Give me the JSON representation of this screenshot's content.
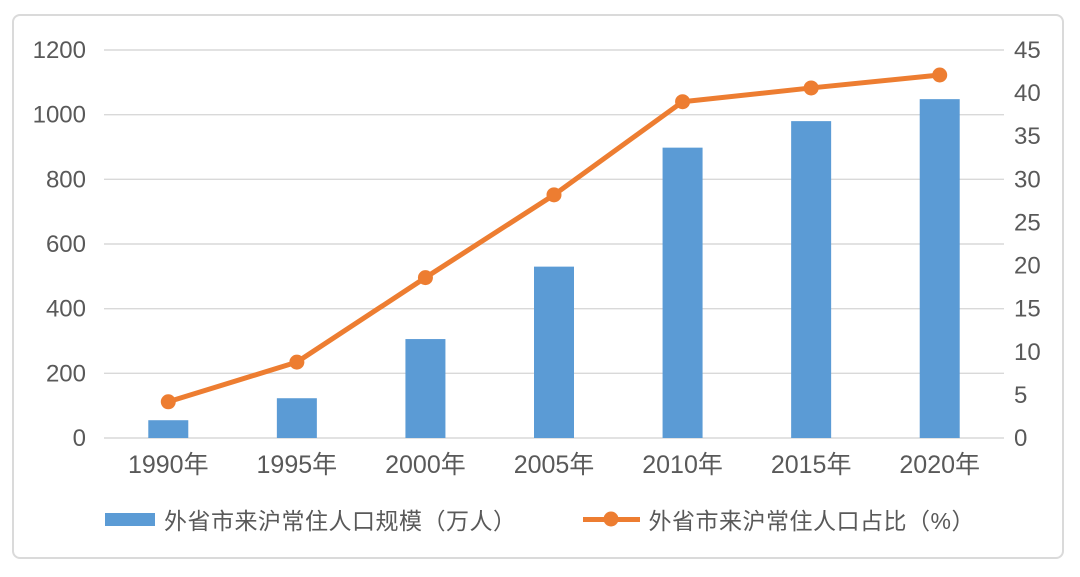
{
  "chart_data": {
    "type": "combo-bar-line",
    "title": "",
    "categories": [
      "1990年",
      "1995年",
      "2000年",
      "2005年",
      "2010年",
      "2015年",
      "2020年"
    ],
    "series": [
      {
        "name": "外省市来沪常住人口规模（万人）",
        "type": "bar",
        "axis": "left",
        "values": [
          55,
          123,
          306,
          530,
          898,
          980,
          1048
        ]
      },
      {
        "name": "外省市来沪常住人口占比（%）",
        "type": "line",
        "axis": "right",
        "values": [
          4.2,
          8.8,
          18.6,
          28.2,
          39.0,
          40.6,
          42.1
        ]
      }
    ],
    "left_axis": {
      "min": 0,
      "max": 1200,
      "step": 200,
      "ticks": [
        "0",
        "200",
        "400",
        "600",
        "800",
        "1000",
        "1200"
      ]
    },
    "right_axis": {
      "min": 0,
      "max": 45,
      "step": 5,
      "ticks": [
        "0",
        "5",
        "10",
        "15",
        "20",
        "25",
        "30",
        "35",
        "40",
        "45"
      ]
    },
    "grid": true,
    "legend_position": "bottom"
  },
  "colors": {
    "bar": "#5B9BD5",
    "line": "#ED7D31",
    "axis_text": "#595959",
    "gridline": "#D9D9D9",
    "card_border": "#DADADA",
    "background": "#FFFFFF"
  }
}
